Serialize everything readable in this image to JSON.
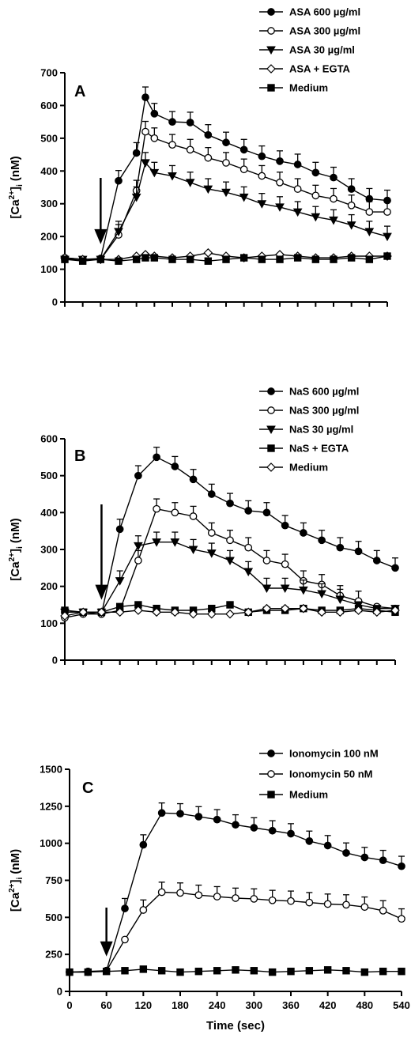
{
  "chart_data": [
    {
      "type": "line",
      "panel_label": "A",
      "ylabel": "[Ca2+]i (nM)",
      "xlabel": "",
      "ylim": [
        0,
        700
      ],
      "yticks": [
        0,
        100,
        200,
        300,
        400,
        500,
        600,
        700
      ],
      "xlim": [
        0,
        540
      ],
      "show_xtick_labels": false,
      "stimulus_arrow_x": 60,
      "x": [
        0,
        30,
        60,
        90,
        120,
        135,
        150,
        180,
        210,
        240,
        270,
        300,
        330,
        360,
        390,
        420,
        450,
        480,
        510,
        540
      ],
      "series": [
        {
          "name": "ASA 600 µg/ml",
          "marker": "circle-filled",
          "values": [
            135,
            130,
            133,
            370,
            455,
            625,
            575,
            550,
            548,
            510,
            487,
            465,
            445,
            430,
            420,
            395,
            380,
            345,
            315,
            310
          ]
        },
        {
          "name": "ASA 300 µg/ml",
          "marker": "circle-open",
          "values": [
            130,
            130,
            130,
            205,
            340,
            520,
            500,
            480,
            465,
            440,
            425,
            405,
            385,
            365,
            345,
            325,
            315,
            295,
            275,
            275
          ]
        },
        {
          "name": "ASA 30 µg/ml",
          "marker": "triangle-down",
          "values": [
            130,
            130,
            130,
            215,
            320,
            425,
            395,
            385,
            365,
            345,
            335,
            320,
            300,
            290,
            275,
            260,
            250,
            235,
            215,
            200
          ]
        },
        {
          "name": "ASA + EGTA",
          "marker": "diamond-open",
          "values": [
            135,
            130,
            130,
            130,
            140,
            145,
            140,
            135,
            140,
            150,
            140,
            135,
            140,
            145,
            140,
            135,
            135,
            140,
            140,
            140
          ]
        },
        {
          "name": "Medium",
          "marker": "square-filled",
          "values": [
            130,
            125,
            130,
            125,
            130,
            135,
            135,
            130,
            130,
            125,
            130,
            135,
            130,
            130,
            135,
            130,
            130,
            135,
            130,
            140
          ]
        }
      ]
    },
    {
      "type": "line",
      "panel_label": "B",
      "ylabel": "[Ca2+]i (nM)",
      "xlabel": "",
      "ylim": [
        0,
        600
      ],
      "yticks": [
        0,
        100,
        200,
        300,
        400,
        500,
        600
      ],
      "xlim": [
        0,
        540
      ],
      "show_xtick_labels": false,
      "stimulus_arrow_x": 60,
      "x": [
        0,
        30,
        60,
        90,
        120,
        150,
        180,
        210,
        240,
        270,
        300,
        330,
        360,
        390,
        420,
        450,
        480,
        510,
        540
      ],
      "series": [
        {
          "name": "NaS 600 µg/ml",
          "marker": "circle-filled",
          "values": [
            130,
            130,
            125,
            355,
            500,
            550,
            525,
            490,
            450,
            425,
            405,
            400,
            365,
            345,
            325,
            305,
            295,
            270,
            250
          ]
        },
        {
          "name": "NaS 300 µg/ml",
          "marker": "circle-open",
          "values": [
            115,
            125,
            125,
            135,
            270,
            410,
            400,
            390,
            345,
            325,
            305,
            270,
            260,
            215,
            205,
            175,
            160,
            145,
            140
          ]
        },
        {
          "name": "NaS 30 µg/ml",
          "marker": "triangle-down",
          "values": [
            130,
            130,
            130,
            215,
            310,
            320,
            320,
            300,
            290,
            270,
            240,
            195,
            195,
            190,
            180,
            165,
            150,
            140,
            140
          ]
        },
        {
          "name": "NaS + EGTA",
          "marker": "square-filled",
          "values": [
            135,
            130,
            130,
            145,
            150,
            140,
            135,
            135,
            140,
            150,
            130,
            135,
            135,
            140,
            135,
            135,
            140,
            135,
            130
          ]
        },
        {
          "name": "Medium",
          "marker": "diamond-open",
          "values": [
            120,
            130,
            130,
            130,
            135,
            130,
            130,
            125,
            125,
            125,
            130,
            140,
            140,
            140,
            130,
            130,
            135,
            130,
            135
          ]
        }
      ]
    },
    {
      "type": "line",
      "panel_label": "C",
      "ylabel": "[Ca2+]i (nM)",
      "xlabel": "Time (sec)",
      "ylim": [
        0,
        1500
      ],
      "yticks": [
        0,
        250,
        500,
        750,
        1000,
        1250,
        1500
      ],
      "xlim": [
        0,
        540
      ],
      "xticks": [
        0,
        60,
        120,
        180,
        240,
        300,
        360,
        420,
        480,
        540
      ],
      "show_xtick_labels": true,
      "stimulus_arrow_x": 60,
      "x": [
        0,
        30,
        60,
        90,
        120,
        150,
        180,
        210,
        240,
        270,
        300,
        330,
        360,
        390,
        420,
        450,
        480,
        510,
        540
      ],
      "series": [
        {
          "name": "Ionomycin 100 nM",
          "marker": "circle-filled",
          "values": [
            130,
            135,
            140,
            560,
            990,
            1205,
            1200,
            1180,
            1160,
            1125,
            1105,
            1085,
            1065,
            1015,
            985,
            935,
            905,
            885,
            845
          ]
        },
        {
          "name": "Ionomycin 50 nM",
          "marker": "circle-open",
          "values": [
            130,
            130,
            140,
            350,
            550,
            670,
            665,
            650,
            640,
            630,
            625,
            615,
            610,
            600,
            590,
            585,
            570,
            545,
            490
          ]
        },
        {
          "name": "Medium",
          "marker": "square-filled",
          "values": [
            130,
            130,
            135,
            140,
            150,
            140,
            130,
            135,
            140,
            145,
            140,
            130,
            135,
            140,
            145,
            140,
            130,
            135,
            135
          ]
        }
      ]
    }
  ]
}
